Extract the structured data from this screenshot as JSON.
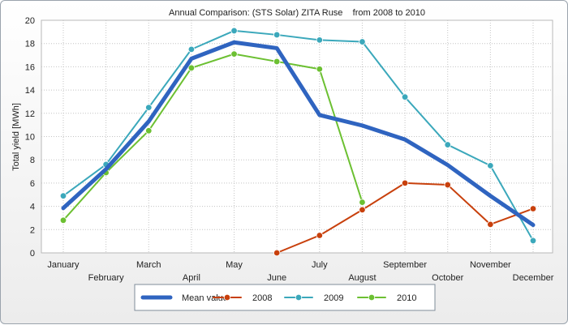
{
  "chart_data": {
    "type": "line",
    "title": "Annual Comparison: (STS Solar) ZITA Ruse    from 2008 to 2010",
    "xlabel": "",
    "ylabel": "Total yield [MWh]",
    "ylim": [
      0,
      20
    ],
    "yticks": [
      0,
      2,
      4,
      6,
      8,
      10,
      12,
      14,
      16,
      18,
      20
    ],
    "grid": true,
    "legend_position": "bottom",
    "categories": [
      "January",
      "February",
      "March",
      "April",
      "May",
      "June",
      "July",
      "August",
      "September",
      "October",
      "November",
      "December"
    ],
    "series": [
      {
        "name": "Mean value",
        "color": "#2f64c0",
        "style": "thick",
        "values": [
          3.85,
          7.2,
          11.3,
          16.7,
          18.1,
          17.6,
          11.85,
          10.95,
          9.75,
          7.55,
          4.9,
          2.4
        ]
      },
      {
        "name": "2008",
        "color": "#c8400c",
        "style": "marker",
        "values": [
          null,
          null,
          null,
          null,
          null,
          0.0,
          1.5,
          3.7,
          6.0,
          5.85,
          2.45,
          3.8
        ]
      },
      {
        "name": "2009",
        "color": "#3ba8bb",
        "style": "marker",
        "values": [
          4.9,
          7.6,
          12.5,
          17.5,
          19.1,
          18.75,
          18.3,
          18.15,
          13.4,
          9.3,
          7.5,
          1.05
        ]
      },
      {
        "name": "2010",
        "color": "#6cc032",
        "style": "marker",
        "values": [
          2.8,
          6.9,
          10.5,
          15.9,
          17.1,
          16.45,
          15.8,
          4.35,
          null,
          null,
          null,
          null
        ]
      }
    ]
  }
}
